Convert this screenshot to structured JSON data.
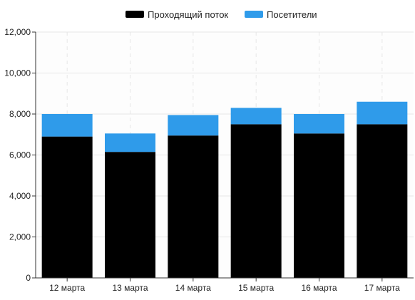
{
  "colors": {
    "walk_through": "#000000",
    "visitors": "#2f9bea",
    "grid": "#e6e6e6",
    "axis": "#333333",
    "plot_background": "#fdfdfd"
  },
  "legend": {
    "items": [
      {
        "label": "Проходящий поток",
        "color": "#000000"
      },
      {
        "label": "Посетители",
        "color": "#2f9bea"
      }
    ]
  },
  "chart_data": {
    "type": "bar",
    "stacked": true,
    "categories": [
      "12 марта",
      "13 марта",
      "14 марта",
      "15 марта",
      "16 марта",
      "17 марта"
    ],
    "series": [
      {
        "name": "Проходящий поток",
        "values": [
          6900,
          6150,
          6950,
          7500,
          7050,
          7500
        ]
      },
      {
        "name": "Посетители",
        "values": [
          1100,
          900,
          1000,
          800,
          950,
          1100
        ]
      }
    ],
    "ylim": [
      0,
      12000
    ],
    "yticks": [
      "0",
      "2,000",
      "4,000",
      "6,000",
      "8,000",
      "10,000",
      "12,000"
    ],
    "grid": true,
    "legend_position": "top-center"
  }
}
